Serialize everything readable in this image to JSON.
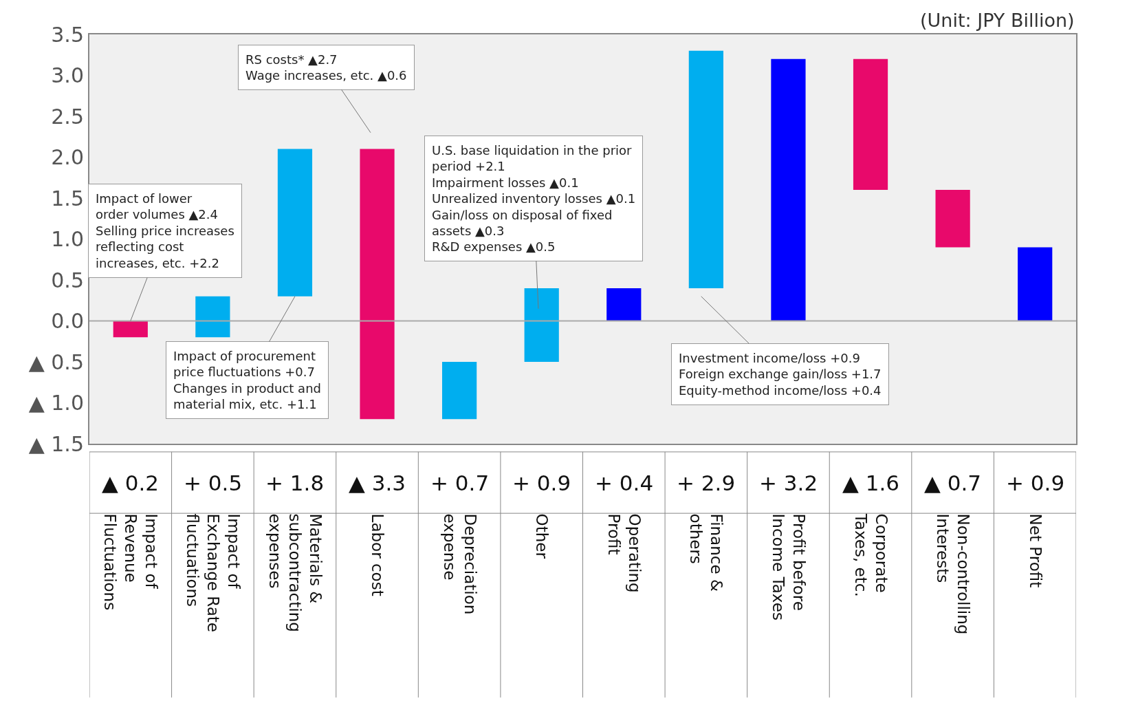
{
  "chart_data": {
    "type": "bar",
    "categories": [
      "Impact of Revenue Fluctuations",
      "Impact of Exchange Rate fluctuations",
      "Materials & subcontracting expenses",
      "Labor cost",
      "Depreciation expense",
      "Other",
      "Operating Profit",
      "Finance & others",
      "Profit before Income Taxes",
      "Corporate Taxes, etc.",
      "Non-controlling Interests",
      "Net Profit"
    ],
    "values": [
      -0.2,
      0.5,
      1.8,
      -3.3,
      0.7,
      0.9,
      0.4,
      2.9,
      3.2,
      -1.6,
      -0.7,
      0.9
    ],
    "base": [
      0,
      -0.2,
      0.3,
      2.1,
      -1.2,
      -0.5,
      0,
      0.4,
      0,
      3.2,
      1.6,
      0
    ],
    "colors": [
      "#e8096b",
      "#00aeef",
      "#00aeef",
      "#e8096b",
      "#00aeef",
      "#00aeef",
      "#0000ff",
      "#00aeef",
      "#0000ff",
      "#e8096b",
      "#e8096b",
      "#0000ff"
    ],
    "value_labels": [
      "▲ 0.2",
      "+ 0.5",
      "+ 1.8",
      "▲ 3.3",
      "+ 0.7",
      "+ 0.9",
      "+ 0.4",
      "+ 2.9",
      "+ 3.2",
      "▲ 1.6",
      "▲ 0.7",
      "+ 0.9"
    ],
    "ylim": [
      -1.5,
      3.5
    ],
    "yticks": [
      {
        "value": -1.5,
        "label": "▲ 1.5"
      },
      {
        "value": -1,
        "label": "▲ 1.0"
      },
      {
        "value": -0.5,
        "label": "▲ 0.5"
      },
      {
        "value": 0,
        "label": "0.0"
      },
      0.5,
      {
        "value": 1,
        "label": "1.0"
      },
      1.5,
      {
        "value": 2,
        "label": "2.0"
      },
      2.5,
      {
        "value": 3,
        "label": "3.0"
      },
      3.5
    ],
    "grid": false,
    "annotations": [
      "(Unit: JPY Billion)",
      {
        "text": "Impact of lower\norder volumes ▲2.4\nSelling price increases\nreflecting cost\nincreases, etc. +2.2",
        "x": "Impact of Revenue Fluctuations",
        "y": 0
      },
      {
        "text": "Impact of procurement\nprice fluctuations +0.7\nChanges in product and\nmaterial mix, etc. +1.1",
        "x": "Materials & subcontracting expenses",
        "y": 0.3
      },
      "RS costs* ▲2.7\nWage increases, etc. ▲0.6",
      "U.S. base liquidation in the prior\nperiod +2.1\nImpairment losses ▲0.1\nUnrealized inventory losses ▲0.1\nGain/loss on disposal of fixed\nassets ▲0.3\nR&D expenses ▲0.5",
      "Investment income/loss +0.9\nForeign exchange gain/loss +1.7\nEquity-method income/loss +0.4"
    ],
    "ref_lines": [
      {
        "axis": "y",
        "value": 0
      }
    ]
  }
}
